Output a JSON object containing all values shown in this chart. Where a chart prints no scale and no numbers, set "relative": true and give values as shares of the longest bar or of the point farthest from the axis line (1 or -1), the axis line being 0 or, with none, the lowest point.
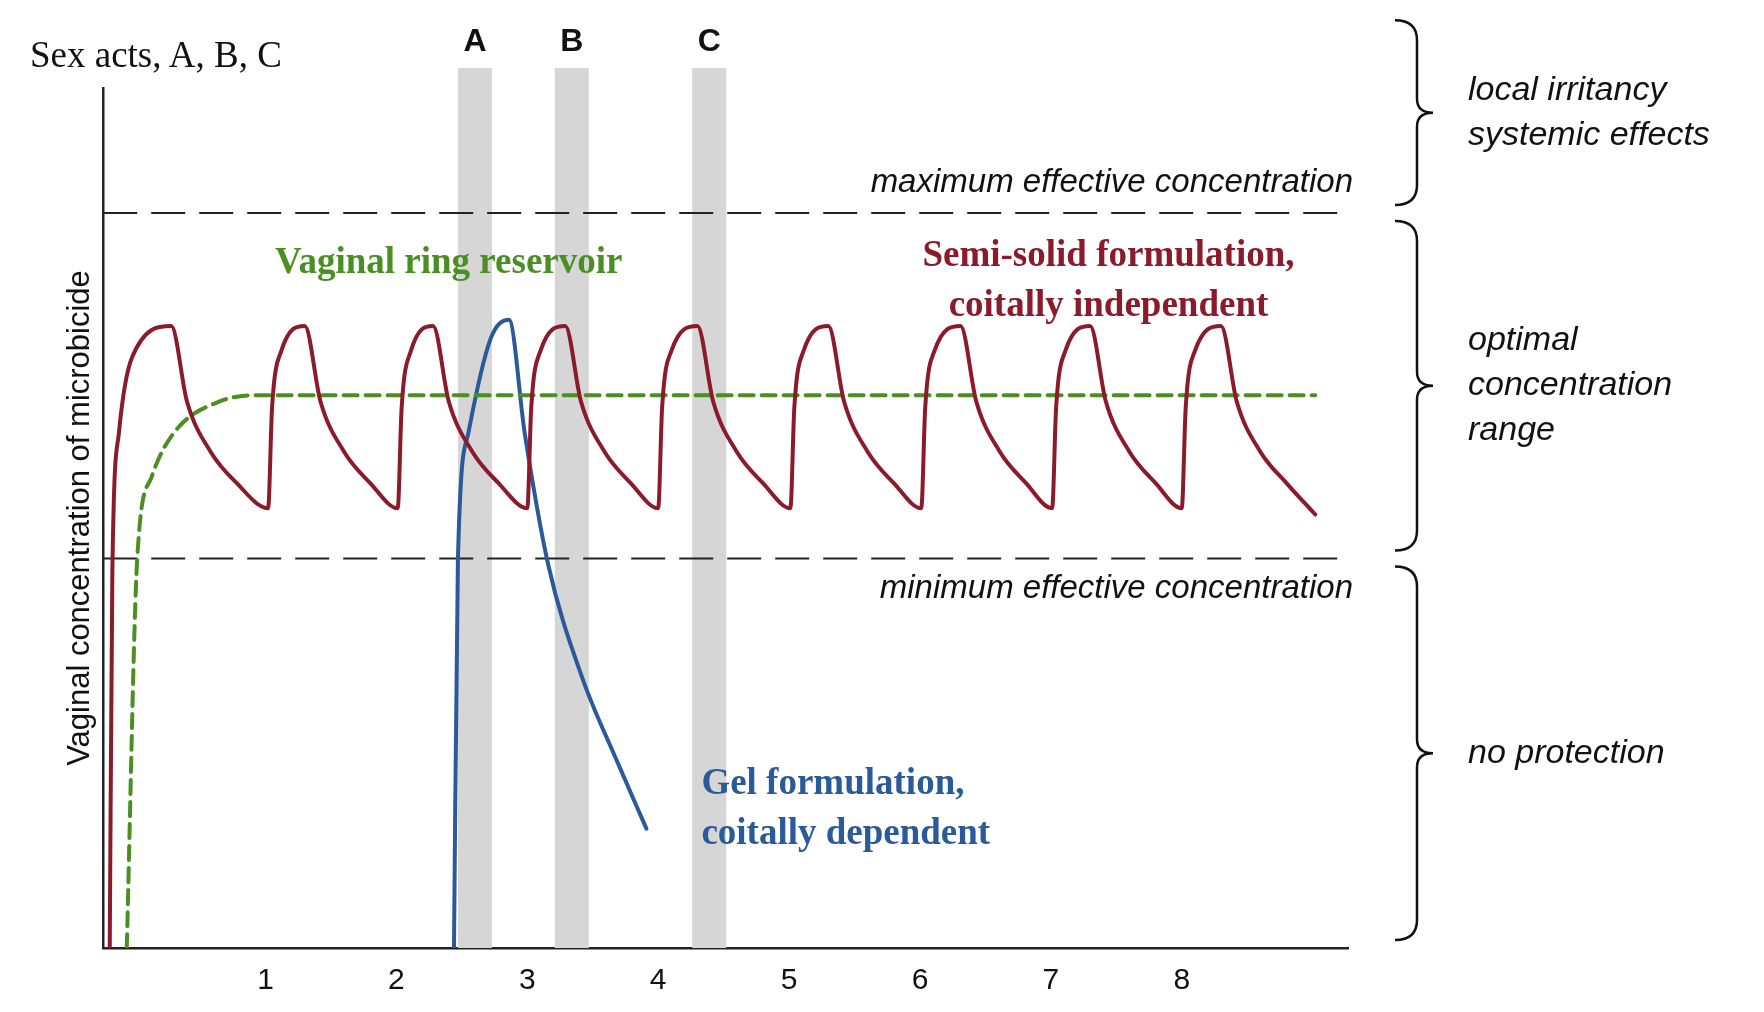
{
  "chart_data": {
    "type": "line",
    "relative": true,
    "ylabel": "Vaginal concentration of microbicide",
    "xlim": [
      -0.24,
      9.27
    ],
    "xticks": [
      1,
      2,
      3,
      4,
      5,
      6,
      7,
      8
    ],
    "grid": false,
    "legend": false,
    "marker": "none",
    "series": [
      {
        "name": "Semi-solid formulation,\ncoitally independent",
        "color": "#8b1a2b",
        "x": [
          -0.19,
          -0.17,
          -0.12,
          -0.02,
          0.28,
          0.4,
          0.58,
          0.78,
          1.02,
          1.05,
          1.12,
          1.3,
          1.42,
          1.6,
          1.8,
          2.01,
          2.04,
          2.11,
          2.28,
          2.4,
          2.58,
          2.78,
          3.0,
          3.03,
          3.1,
          3.29,
          3.41,
          3.59,
          3.79,
          4.0,
          4.03,
          4.1,
          4.3,
          4.42,
          4.6,
          4.8,
          5.01,
          5.04,
          5.11,
          5.3,
          5.42,
          5.6,
          5.8,
          6.01,
          6.04,
          6.11,
          6.31,
          6.43,
          6.61,
          6.81,
          7.01,
          7.04,
          7.11,
          7.3,
          7.42,
          7.6,
          7.8,
          8.0,
          8.03,
          8.1,
          8.3,
          8.42,
          8.6,
          8.8,
          9.02
        ],
        "values": [
          0,
          0.6,
          0.82,
          0.94,
          0.99,
          0.87,
          0.79,
          0.74,
          0.7,
          0.86,
          0.95,
          0.99,
          0.87,
          0.79,
          0.74,
          0.7,
          0.86,
          0.95,
          0.99,
          0.87,
          0.79,
          0.74,
          0.7,
          0.86,
          0.95,
          0.99,
          0.87,
          0.79,
          0.74,
          0.7,
          0.86,
          0.95,
          0.99,
          0.87,
          0.79,
          0.74,
          0.7,
          0.86,
          0.95,
          0.99,
          0.87,
          0.79,
          0.74,
          0.7,
          0.86,
          0.95,
          0.99,
          0.87,
          0.79,
          0.74,
          0.7,
          0.86,
          0.95,
          0.99,
          0.87,
          0.79,
          0.74,
          0.7,
          0.86,
          0.95,
          0.99,
          0.87,
          0.79,
          0.74,
          0.69
        ]
      },
      {
        "name": "Vaginal ring reservoir",
        "color": "#4a8f22",
        "line_style": "dashed",
        "x": [
          -0.06,
          0.02,
          0.13,
          0.3,
          0.65,
          1.0,
          9.02
        ],
        "values": [
          0,
          0.62,
          0.75,
          0.82,
          0.87,
          0.88,
          0.88
        ]
      },
      {
        "name": "Gel formulation,\ncoitally dependent",
        "color": "#2b5a9a",
        "x": [
          2.44,
          2.47,
          2.55,
          2.72,
          2.86,
          2.98,
          3.16,
          3.42,
          3.68,
          3.91
        ],
        "values": [
          0,
          0.62,
          0.82,
          0.97,
          1.0,
          0.82,
          0.61,
          0.43,
          0.3,
          0.19
        ]
      }
    ],
    "bands": [
      {
        "axis": "x",
        "from": 2.47,
        "to": 2.73,
        "label": "A",
        "color": "#d6d6d6"
      },
      {
        "axis": "x",
        "from": 3.21,
        "to": 3.47,
        "label": "B",
        "color": "#d6d6d6"
      },
      {
        "axis": "x",
        "from": 4.26,
        "to": 4.52,
        "label": "C",
        "color": "#d6d6d6"
      }
    ],
    "ref_lines": [
      {
        "axis": "y",
        "value": 1.17,
        "label": "maximum effective concentration",
        "line_style": "dashed",
        "color": "#222222"
      },
      {
        "axis": "y",
        "value": 0.62,
        "label": "minimum effective concentration",
        "line_style": "dashed",
        "color": "#222222"
      }
    ],
    "annotations": [
      "Sex acts, A, B, C",
      "local irritancy\nsystemic effects",
      "optimal\nconcentration\nrange",
      "no protection"
    ]
  }
}
